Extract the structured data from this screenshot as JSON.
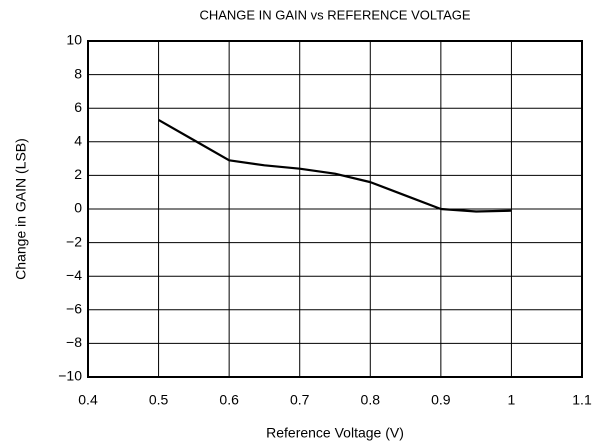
{
  "chart_data": {
    "type": "line",
    "title": "CHANGE IN GAIN vs REFERENCE VOLTAGE",
    "xlabel": "Reference Voltage (V)",
    "ylabel": "Change in GAIN (LSB)",
    "x": [
      0.5,
      0.55,
      0.6,
      0.65,
      0.7,
      0.75,
      0.8,
      0.85,
      0.9,
      0.95,
      1.0
    ],
    "series": [
      {
        "name": "Change in GAIN",
        "color": "#000000",
        "values": [
          5.3,
          4.1,
          2.9,
          2.6,
          2.4,
          2.1,
          1.6,
          0.8,
          0.0,
          -0.15,
          -0.1
        ]
      }
    ],
    "xlim": [
      0.4,
      1.1
    ],
    "xticks": [
      0.4,
      0.5,
      0.6,
      0.7,
      0.8,
      0.9,
      1,
      1.1
    ],
    "ylim": [
      -10,
      10
    ],
    "yticks": [
      {
        "value": -10,
        "label": "−10"
      },
      {
        "value": -8,
        "label": "−8"
      },
      {
        "value": -6,
        "label": "−6"
      },
      {
        "value": -4,
        "label": "−4"
      },
      {
        "value": -2,
        "label": "−2"
      },
      0,
      2,
      4,
      6,
      8,
      10
    ],
    "grid": true
  }
}
